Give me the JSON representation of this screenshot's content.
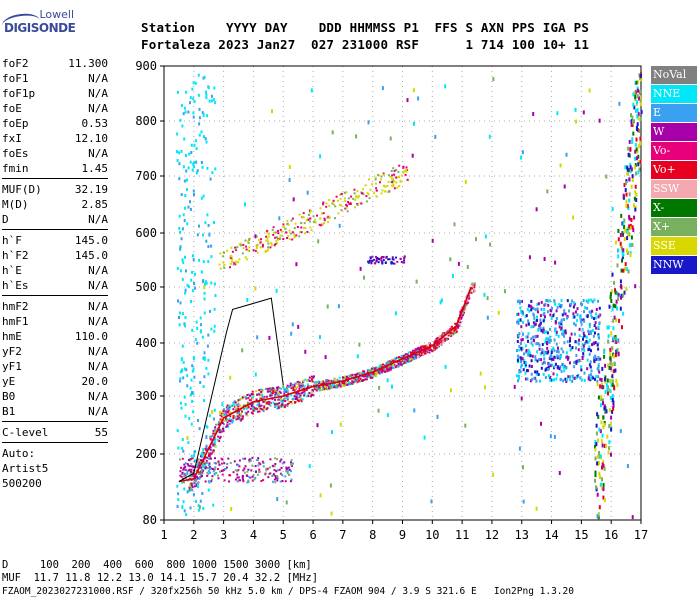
{
  "logo": {
    "top": "Lowell",
    "main": "DIGISONDE"
  },
  "header": {
    "row1": "Station    YYYY DAY    DDD HHMMSS P1  FFS S AXN PPS IGA PS",
    "row2": "Fortaleza 2023 Jan27  027 231000 RSF      1 714 100 10+ 11"
  },
  "params": [
    {
      "k": "foF2",
      "v": "11.300"
    },
    {
      "k": "foF1",
      "v": "N/A"
    },
    {
      "k": "foF1p",
      "v": "N/A"
    },
    {
      "k": "foE",
      "v": "N/A"
    },
    {
      "k": "foEp",
      "v": "0.53"
    },
    {
      "k": "fxI",
      "v": "12.10"
    },
    {
      "k": "foEs",
      "v": "N/A"
    },
    {
      "k": "fmin",
      "v": "1.45"
    },
    {
      "k": "MUF(D)",
      "v": "32.19"
    },
    {
      "k": "M(D)",
      "v": "2.85"
    },
    {
      "k": "D",
      "v": "N/A"
    },
    {
      "k": "h`F",
      "v": "145.0"
    },
    {
      "k": "h`F2",
      "v": "145.0"
    },
    {
      "k": "h`E",
      "v": "N/A"
    },
    {
      "k": "h`Es",
      "v": "N/A"
    },
    {
      "k": "hmF2",
      "v": "N/A"
    },
    {
      "k": "hmF1",
      "v": "N/A"
    },
    {
      "k": "hmE",
      "v": "110.0"
    },
    {
      "k": "yF2",
      "v": "N/A"
    },
    {
      "k": "yF1",
      "v": "N/A"
    },
    {
      "k": "yE",
      "v": "20.0"
    },
    {
      "k": "B0",
      "v": "N/A"
    },
    {
      "k": "B1",
      "v": "N/A"
    },
    {
      "k": "C-level",
      "v": "55"
    }
  ],
  "auto": {
    "line1": "Auto:",
    "line2": "Artist5",
    "line3": "500200"
  },
  "legend": [
    {
      "label": "NoVal",
      "color": "#808080"
    },
    {
      "label": "NNE",
      "color": "#00e8f8"
    },
    {
      "label": "E",
      "color": "#3aa0f0"
    },
    {
      "label": "W",
      "color": "#a800a8"
    },
    {
      "label": "Vo-",
      "color": "#e8007a"
    },
    {
      "label": "Vo+",
      "color": "#e80020"
    },
    {
      "label": "SSW",
      "color": "#f4a8b0"
    },
    {
      "label": "X-",
      "color": "#007800"
    },
    {
      "label": "X+",
      "color": "#78b060"
    },
    {
      "label": "SSE",
      "color": "#d8d800"
    },
    {
      "label": "NNW",
      "color": "#1818c8"
    }
  ],
  "footer": {
    "line1": "D     100  200  400  600  800 1000 1500 3000 [km]",
    "line2": "MUF  11.7 11.8 12.2 13.0 14.1 15.7 20.4 32.2 [MHz]",
    "line3": "FZAOM_2023027231000.RSF / 320fx256h 50 kHz 5.0 km / DPS-4 FZAOM 904 / 3.9 S 321.6 E   Ion2Png 1.3.20"
  },
  "chart_data": {
    "type": "scatter",
    "xlabel": "",
    "ylabel": "",
    "xlim": [
      1,
      17
    ],
    "ylim": [
      80,
      900
    ],
    "xticks": [
      "1",
      "2",
      "3",
      "4",
      "5",
      "6",
      "7",
      "8",
      "9",
      "10",
      "11",
      "12",
      "13",
      "14",
      "15",
      "16",
      "17"
    ],
    "yticks": [
      "80",
      "200",
      "300",
      "400",
      "500",
      "600",
      "700",
      "800",
      "900"
    ],
    "grid": true,
    "trace_line": [
      [
        1.5,
        150
      ],
      [
        2.0,
        155
      ],
      [
        3.0,
        262
      ],
      [
        4.0,
        290
      ],
      [
        5.0,
        300
      ],
      [
        6.0,
        318
      ],
      [
        7.0,
        328
      ],
      [
        8.0,
        345
      ],
      [
        9.0,
        370
      ],
      [
        10.0,
        395
      ],
      [
        10.8,
        430
      ],
      [
        11.3,
        500
      ]
    ],
    "profile_line": [
      [
        1.5,
        150
      ],
      [
        2.0,
        165
      ],
      [
        3.1,
        420
      ],
      [
        3.3,
        460
      ],
      [
        4.6,
        480
      ],
      [
        5.0,
        320
      ]
    ]
  }
}
